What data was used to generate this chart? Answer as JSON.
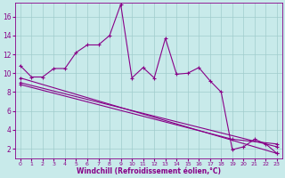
{
  "xlabel": "Windchill (Refroidissement éolien,°C)",
  "background_color": "#c8eaea",
  "grid_color": "#a0cccc",
  "line_color": "#880088",
  "xlim": [
    -0.5,
    23.5
  ],
  "ylim": [
    1,
    17.5
  ],
  "xticks": [
    0,
    1,
    2,
    3,
    4,
    5,
    6,
    7,
    8,
    9,
    10,
    11,
    12,
    13,
    14,
    15,
    16,
    17,
    18,
    19,
    20,
    21,
    22,
    23
  ],
  "yticks": [
    2,
    4,
    6,
    8,
    10,
    12,
    14,
    16
  ],
  "series1_x": [
    0,
    1,
    2,
    3,
    4,
    5,
    6,
    7,
    8,
    9,
    10,
    11,
    12,
    13,
    14,
    15,
    16,
    17,
    18,
    19,
    20,
    21,
    22,
    23
  ],
  "series1_y": [
    10.8,
    9.6,
    9.6,
    10.5,
    10.5,
    12.2,
    13.0,
    13.0,
    14.0,
    17.3,
    9.5,
    10.6,
    9.5,
    13.7,
    9.9,
    10.0,
    10.6,
    9.2,
    8.0,
    1.9,
    2.2,
    3.0,
    2.5,
    1.5
  ],
  "series2_x": [
    0,
    23
  ],
  "series2_y": [
    9.5,
    1.5
  ],
  "series3_x": [
    0,
    23
  ],
  "series3_y": [
    9.0,
    2.2
  ],
  "series4_x": [
    0,
    19,
    23
  ],
  "series4_y": [
    8.8,
    3.0,
    2.5
  ]
}
